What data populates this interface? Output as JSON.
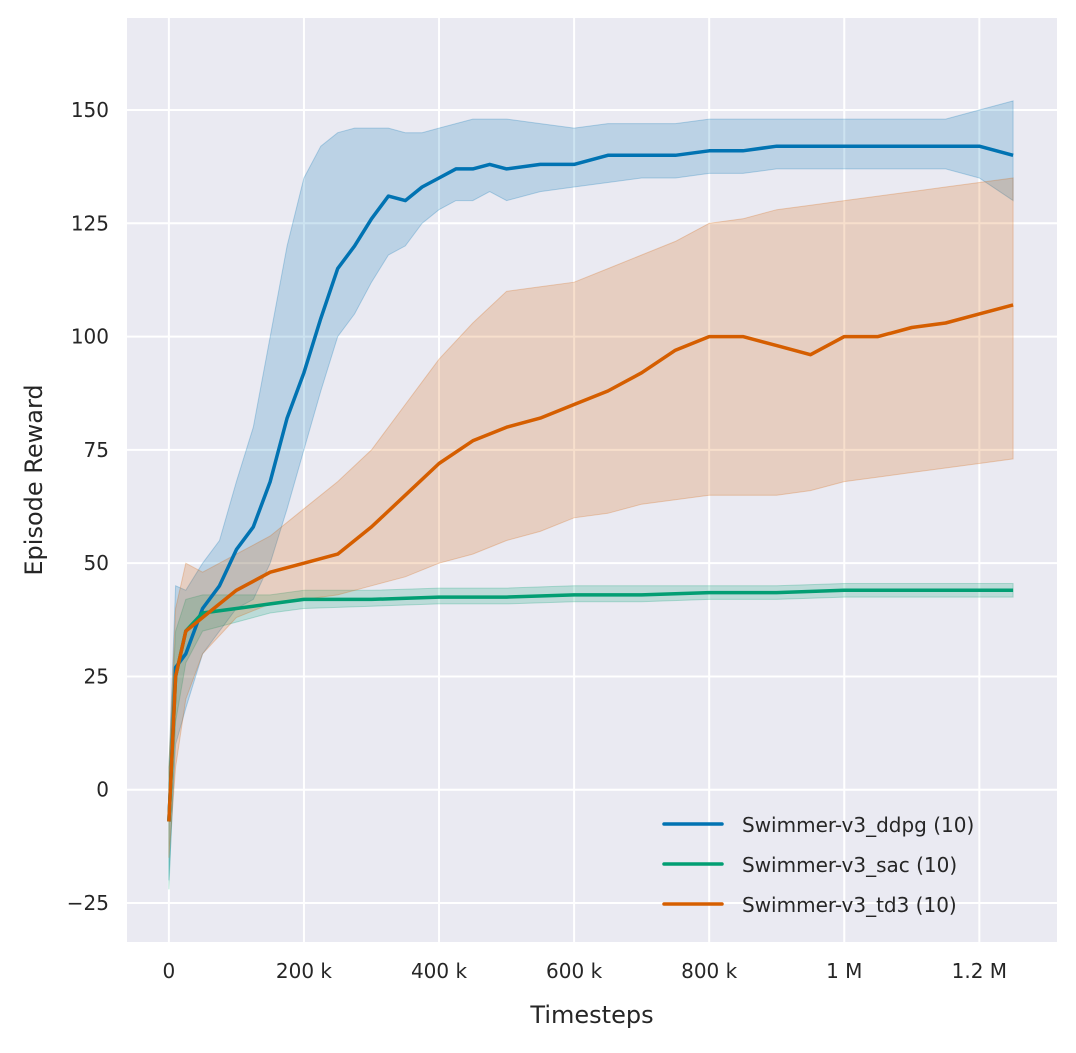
{
  "chart_data": {
    "type": "line",
    "title": "",
    "xlabel": "Timesteps",
    "ylabel": "Episode Reward",
    "xlim": [
      -62000,
      1315000
    ],
    "ylim": [
      -33.6,
      170.3
    ],
    "xticks": [
      0,
      200000,
      400000,
      600000,
      800000,
      1000000,
      1200000
    ],
    "xtick_labels": [
      "0",
      "200 k",
      "400 k",
      "600 k",
      "800 k",
      "1 M",
      "1.2 M"
    ],
    "yticks": [
      -25,
      0,
      25,
      50,
      75,
      100,
      125,
      150
    ],
    "ytick_labels": [
      "−25",
      "0",
      "25",
      "50",
      "75",
      "100",
      "125",
      "150"
    ],
    "grid": true,
    "background": "#eaeaf2",
    "legend_position": "bottom-right",
    "series": [
      {
        "name": "Swimmer-v3_ddpg (10)",
        "color": "#0173b2",
        "x": [
          0,
          10000,
          25000,
          50000,
          75000,
          100000,
          125000,
          150000,
          175000,
          200000,
          225000,
          250000,
          275000,
          300000,
          325000,
          350000,
          375000,
          400000,
          425000,
          450000,
          475000,
          500000,
          550000,
          600000,
          650000,
          700000,
          750000,
          800000,
          850000,
          900000,
          950000,
          1000000,
          1050000,
          1100000,
          1150000,
          1200000,
          1250000
        ],
        "mean": [
          -7,
          27,
          30,
          40,
          45,
          53,
          58,
          68,
          82,
          92,
          104,
          115,
          120,
          126,
          131,
          130,
          133,
          135,
          137,
          137,
          138,
          137,
          138,
          138,
          140,
          140,
          140,
          141,
          141,
          142,
          142,
          142,
          142,
          142,
          142,
          142,
          140
        ],
        "lower": [
          -20,
          10,
          18,
          30,
          35,
          40,
          42,
          50,
          62,
          75,
          88,
          100,
          105,
          112,
          118,
          120,
          125,
          128,
          130,
          130,
          132,
          130,
          132,
          133,
          134,
          135,
          135,
          136,
          136,
          137,
          137,
          137,
          137,
          137,
          137,
          135,
          130
        ],
        "upper": [
          5,
          45,
          44,
          50,
          55,
          68,
          80,
          100,
          120,
          135,
          142,
          145,
          146,
          146,
          146,
          145,
          145,
          146,
          147,
          148,
          148,
          148,
          147,
          146,
          147,
          147,
          147,
          148,
          148,
          148,
          148,
          148,
          148,
          148,
          148,
          150,
          152
        ]
      },
      {
        "name": "Swimmer-v3_sac (10)",
        "color": "#029e73",
        "x": [
          0,
          10000,
          25000,
          50000,
          100000,
          150000,
          200000,
          300000,
          400000,
          500000,
          600000,
          700000,
          800000,
          900000,
          1000000,
          1100000,
          1200000,
          1250000
        ],
        "mean": [
          -7,
          25,
          35,
          39,
          40,
          41,
          42,
          42,
          42.5,
          42.5,
          43,
          43,
          43.5,
          43.5,
          44,
          44,
          44,
          44
        ],
        "lower": [
          -22,
          15,
          28,
          35,
          37,
          39,
          40,
          40.5,
          41,
          41,
          41.5,
          41.5,
          42,
          42,
          42.5,
          42.5,
          42.5,
          42.5
        ],
        "upper": [
          5,
          35,
          42,
          43,
          43,
          43,
          44,
          44,
          44.5,
          44.5,
          45,
          45,
          45,
          45,
          45.5,
          45.5,
          45.5,
          45.5
        ]
      },
      {
        "name": "Swimmer-v3_td3 (10)",
        "color": "#d55e00",
        "x": [
          0,
          10000,
          25000,
          50000,
          100000,
          150000,
          200000,
          250000,
          300000,
          350000,
          400000,
          450000,
          500000,
          550000,
          600000,
          650000,
          700000,
          750000,
          800000,
          850000,
          900000,
          950000,
          1000000,
          1050000,
          1100000,
          1150000,
          1200000,
          1250000
        ],
        "mean": [
          -7,
          25,
          35,
          38,
          44,
          48,
          50,
          52,
          58,
          65,
          72,
          77,
          80,
          82,
          85,
          88,
          92,
          97,
          100,
          100,
          98,
          96,
          100,
          100,
          102,
          103,
          105,
          107
        ],
        "lower": [
          -15,
          5,
          20,
          30,
          38,
          41,
          42,
          43,
          45,
          47,
          50,
          52,
          55,
          57,
          60,
          61,
          63,
          64,
          65,
          65,
          65,
          66,
          68,
          69,
          70,
          71,
          72,
          73
        ],
        "upper": [
          5,
          40,
          50,
          48,
          52,
          56,
          62,
          68,
          75,
          85,
          95,
          103,
          110,
          111,
          112,
          115,
          118,
          121,
          125,
          126,
          128,
          129,
          130,
          131,
          132,
          133,
          134,
          135
        ]
      }
    ]
  }
}
